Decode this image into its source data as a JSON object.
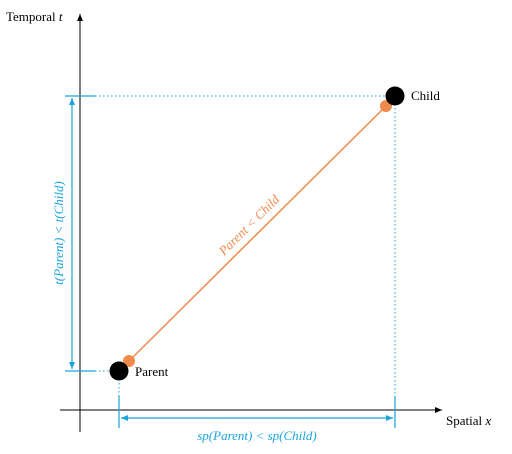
{
  "axes": {
    "y_label": "Temporal",
    "y_var": "t",
    "x_label": "Spatial",
    "x_var": "x"
  },
  "nodes": [
    {
      "label": "Child"
    },
    {
      "label": "Parent"
    }
  ],
  "annotations": {
    "edge": "Parent < Child",
    "temporal": "t(Parent) < t(Child)",
    "spatial": "sp(Parent) < sp(Child)"
  }
}
